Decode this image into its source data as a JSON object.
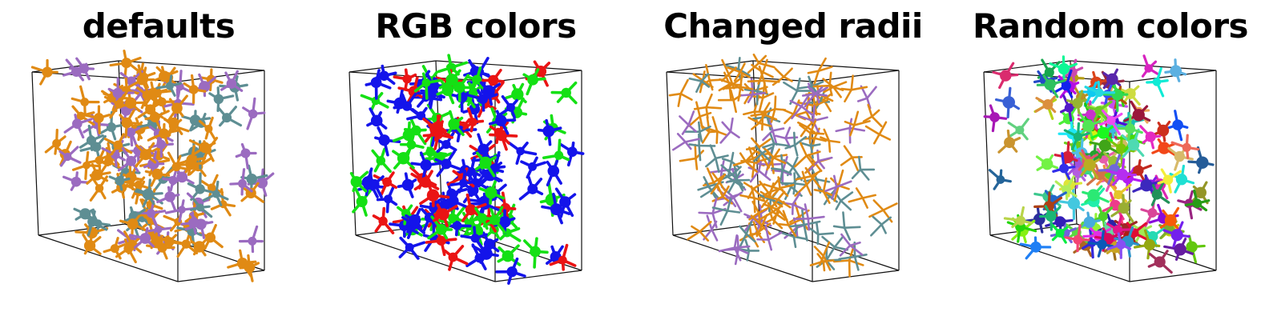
{
  "panels": [
    {
      "title": "defaults",
      "scheme": "palette",
      "palette": [
        "#e08a14",
        "#9b6bc0",
        "#5e8e93"
      ],
      "weights": [
        0.58,
        0.22,
        0.2
      ],
      "bond_width": 3.2,
      "atom_radius": 6.0,
      "seed": 11
    },
    {
      "title": "RGB colors",
      "scheme": "palette",
      "palette": [
        "#1414ea",
        "#14e014",
        "#ea1414"
      ],
      "weights": [
        0.52,
        0.26,
        0.22
      ],
      "bond_width": 3.6,
      "atom_radius": 6.5,
      "seed": 23
    },
    {
      "title": "Changed radii",
      "scheme": "palette",
      "palette": [
        "#e08a14",
        "#9b6bc0",
        "#5e8e93"
      ],
      "weights": [
        0.55,
        0.23,
        0.22
      ],
      "bond_width": 2.6,
      "atom_radius": 0,
      "seed": 37
    },
    {
      "title": "Random colors",
      "scheme": "random",
      "palette": [],
      "weights": [],
      "bond_width": 3.2,
      "atom_radius": 6.5,
      "seed": 51
    }
  ]
}
